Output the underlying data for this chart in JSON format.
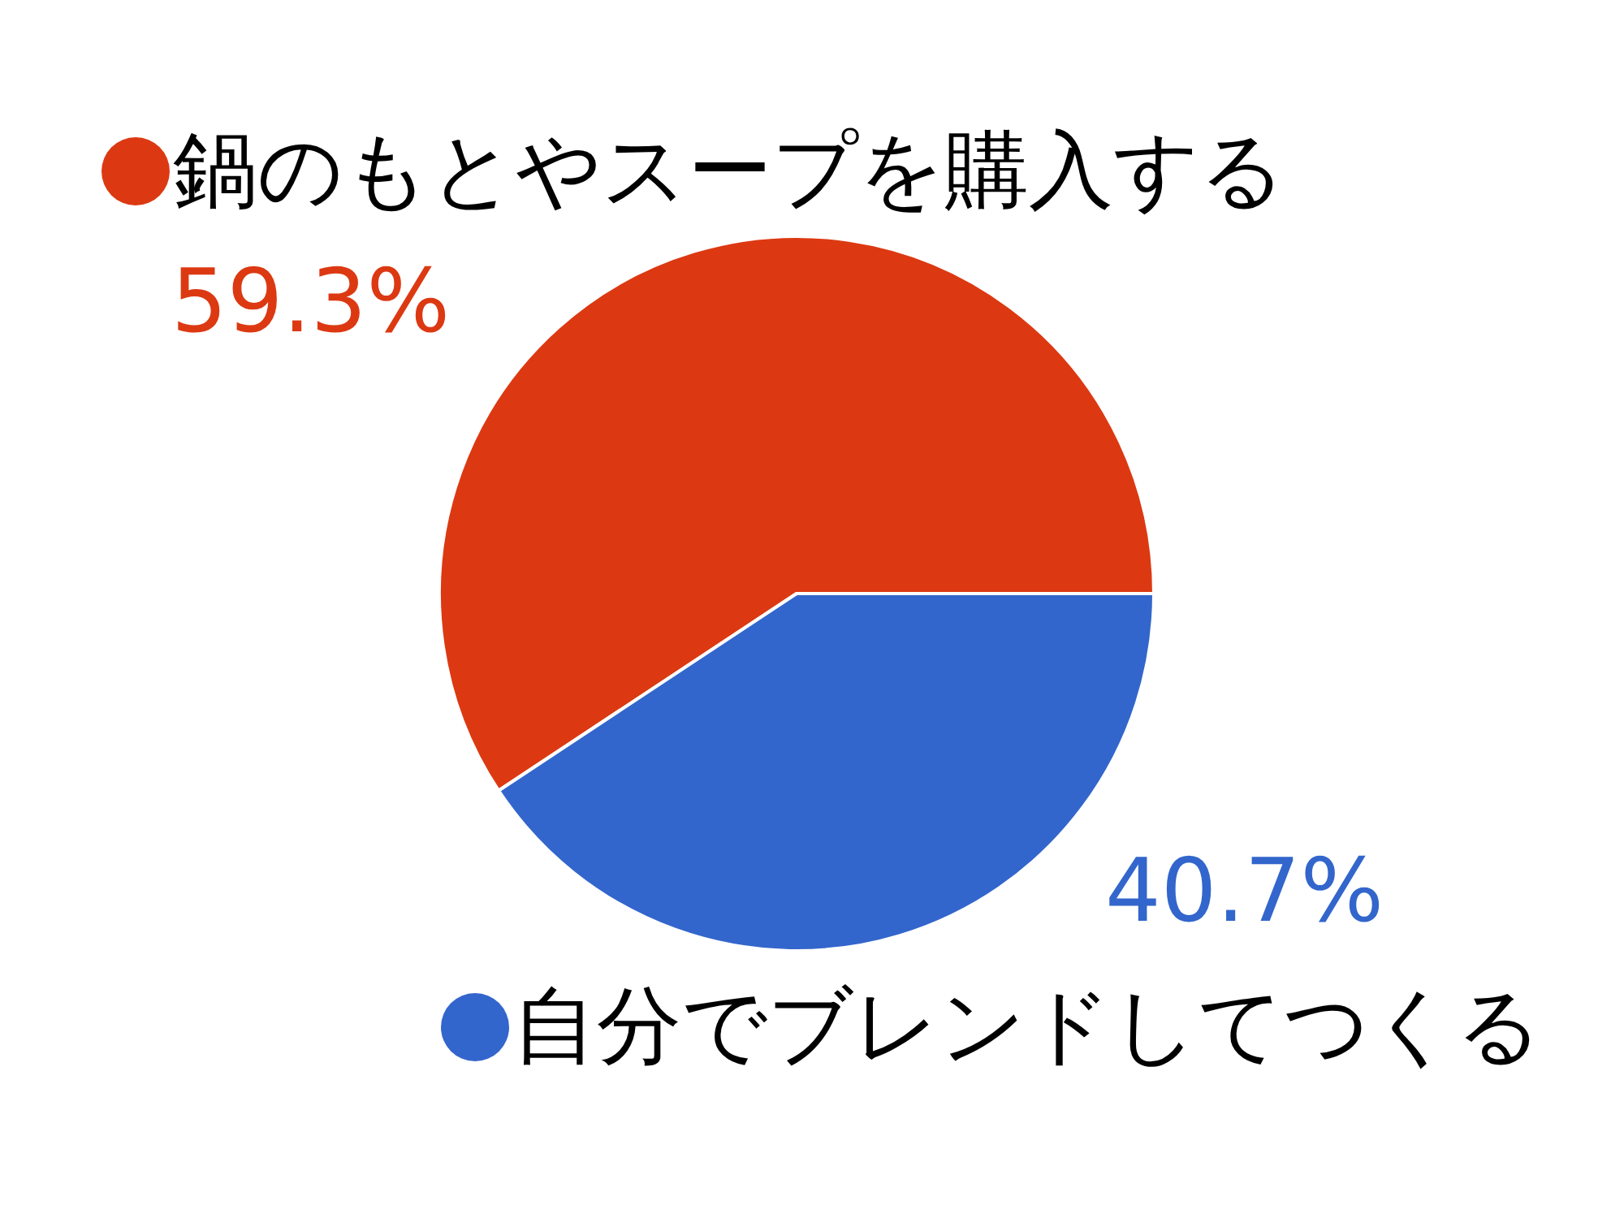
{
  "chart_data": {
    "type": "pie",
    "categories": [
      "鍋のもとやスープを購入する",
      "自分でブレンドしてつくる"
    ],
    "values": [
      59.3,
      40.7
    ],
    "colors": [
      "#dc3912",
      "#3366cc"
    ],
    "value_labels": [
      "59.3%",
      "40.7%"
    ],
    "legend": "bottom right"
  }
}
